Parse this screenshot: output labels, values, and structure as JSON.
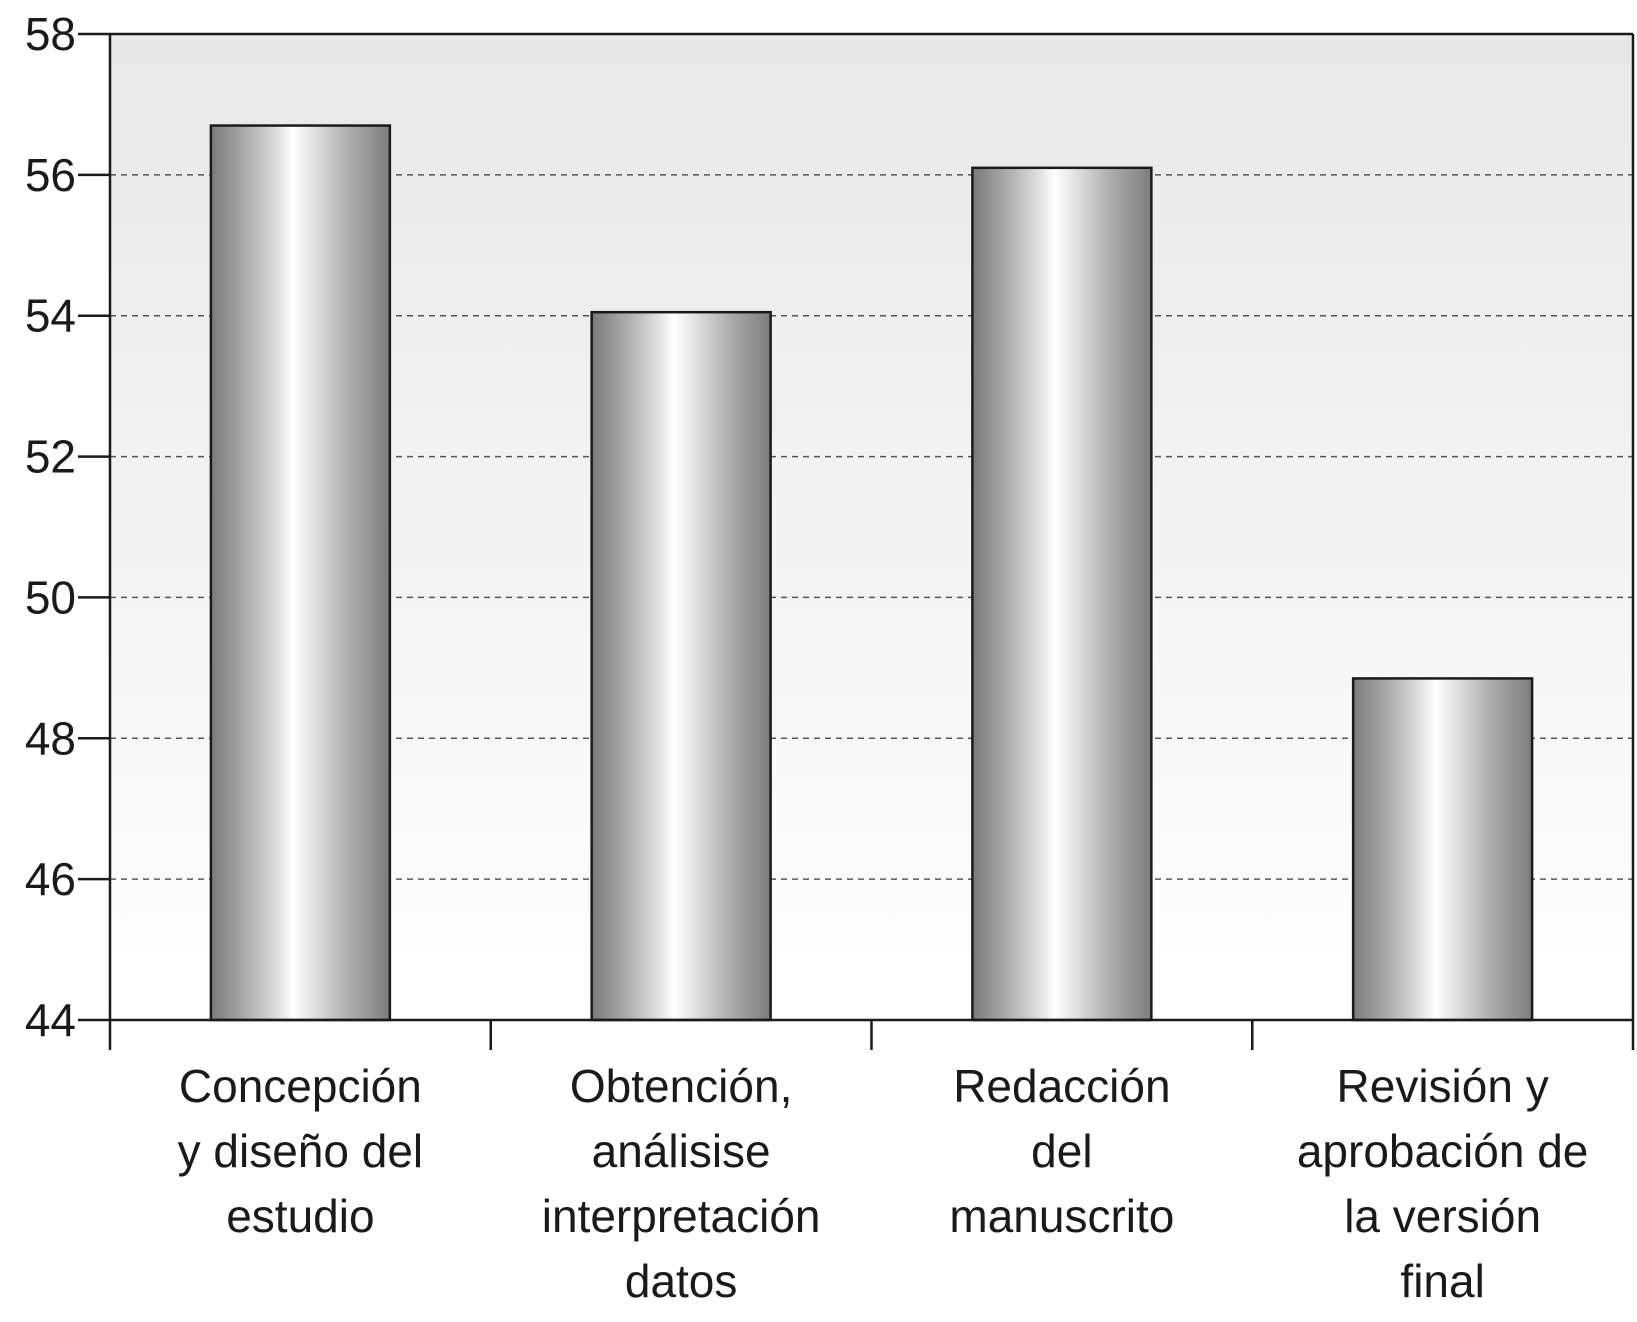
{
  "chart_data": {
    "type": "bar",
    "title": "",
    "xlabel": "",
    "ylabel": "",
    "ylim": [
      44,
      58
    ],
    "yticks": [
      44,
      46,
      48,
      50,
      52,
      54,
      56,
      58
    ],
    "categories": [
      [
        "Concepción",
        "y diseño del",
        "estudio"
      ],
      [
        "Obtención,",
        "análisise",
        "interpretación",
        "datos"
      ],
      [
        "Redacción",
        "del",
        "manuscrito"
      ],
      [
        "Revisión y",
        "aprobación de",
        "la versión",
        "final"
      ]
    ],
    "values": [
      56.7,
      54.05,
      56.1,
      48.85
    ],
    "grid": true,
    "legend": "none",
    "colors": {
      "bar_edge": "#1a1a1a",
      "bar_dark": "#7a7a7a",
      "bar_light": "#ffffff",
      "plot_bg_top": "#e8e8e8",
      "plot_bg_bottom": "#ffffff",
      "grid": "#555555"
    }
  }
}
